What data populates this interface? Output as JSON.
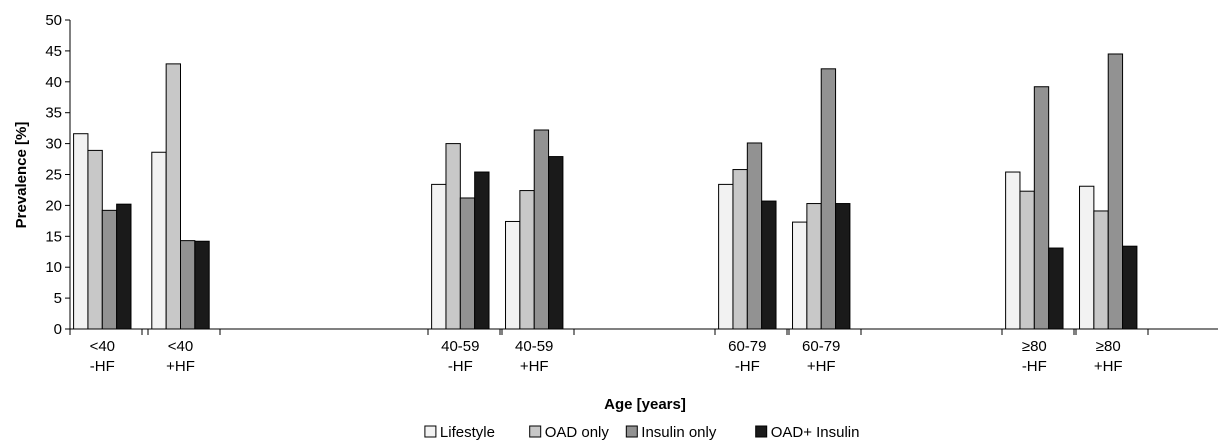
{
  "chart_data": {
    "type": "bar",
    "xlabel": "Age [years]",
    "ylabel": "Prevalence [%]",
    "ylim": [
      0,
      50
    ],
    "yticks": [
      0,
      5,
      10,
      15,
      20,
      25,
      30,
      35,
      40,
      45,
      50
    ],
    "grid": false,
    "legend_position": "bottom",
    "categories": [
      {
        "line1": "<40",
        "line2": "-HF"
      },
      {
        "line1": "<40",
        "line2": "+HF"
      },
      {
        "line1": "40-59",
        "line2": "-HF"
      },
      {
        "line1": "40-59",
        "line2": "+HF"
      },
      {
        "line1": "60-79",
        "line2": "-HF"
      },
      {
        "line1": "60-79",
        "line2": "+HF"
      },
      {
        "line1": "≥80",
        "line2": "-HF"
      },
      {
        "line1": "≥80",
        "line2": "+HF"
      }
    ],
    "series": [
      {
        "name": "Lifestyle",
        "color": "#f2f2f2",
        "values": [
          31.6,
          28.6,
          23.4,
          17.4,
          23.4,
          17.3,
          25.4,
          23.1
        ]
      },
      {
        "name": "OAD only",
        "color": "#c8c8c8",
        "values": [
          28.9,
          42.9,
          30.0,
          22.4,
          25.8,
          20.3,
          22.3,
          19.1
        ]
      },
      {
        "name": "Insulin only",
        "color": "#929292",
        "values": [
          19.2,
          14.3,
          21.2,
          32.2,
          30.1,
          42.1,
          39.2,
          44.5
        ]
      },
      {
        "name": "OAD+ Insulin",
        "color": "#1a1a1a",
        "values": [
          20.2,
          14.2,
          25.4,
          27.9,
          20.7,
          20.3,
          13.1,
          13.4
        ]
      }
    ]
  }
}
